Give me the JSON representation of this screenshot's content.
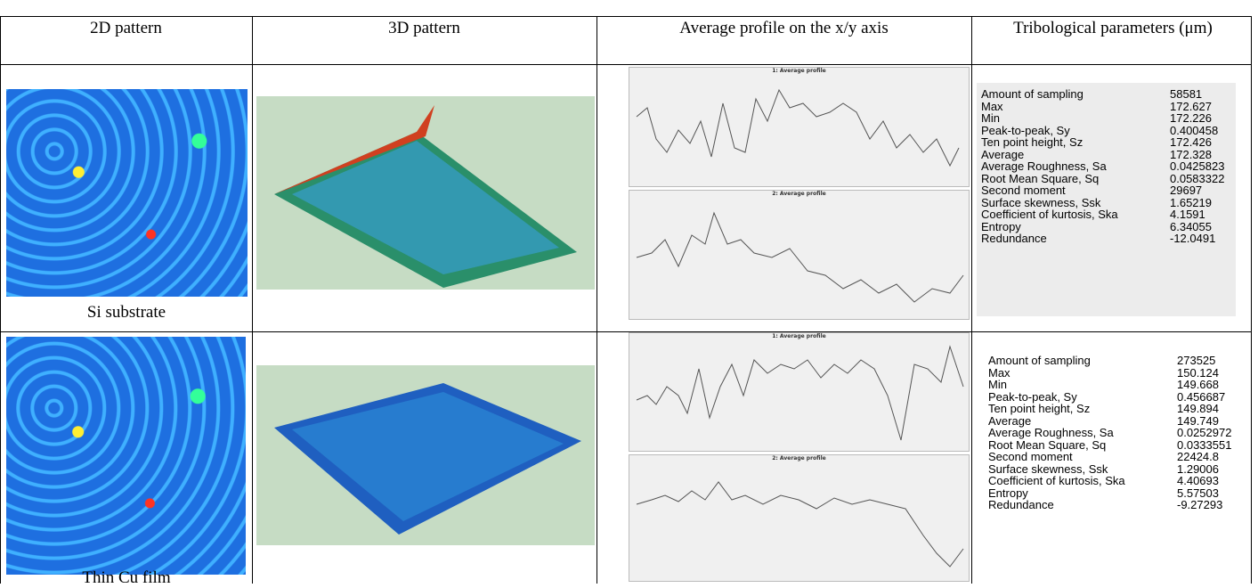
{
  "header": {
    "cells": [
      "2D pattern",
      "3D pattern",
      "Average profile on the x/y axis",
      "Tribological parameters (μm)"
    ]
  },
  "rows": [
    {
      "caption": "Si substrate",
      "profile_titles": [
        "1: Average profile",
        "2: Average profile"
      ],
      "parameters": [
        [
          "Amount of sampling",
          58581
        ],
        [
          "Max",
          172.627
        ],
        [
          "Min",
          172.226
        ],
        [
          "Peak-to-peak, Sy",
          0.400458
        ],
        [
          "Ten point height, Sz",
          172.426
        ],
        [
          "Average",
          172.328
        ],
        [
          "Average Roughness, Sa",
          0.0425823
        ],
        [
          "Root Mean Square, Sq",
          0.0583322
        ],
        [
          "Second moment",
          29697
        ],
        [
          "Surface skewness, Ssk",
          1.65219
        ],
        [
          "Coefficient of kurtosis, Ska",
          4.1591
        ],
        [
          "Entropy",
          6.34055
        ],
        [
          "Redundance",
          -12.0491
        ]
      ]
    },
    {
      "caption": "Thin Cu film",
      "profile_titles": [
        "1: Average profile",
        "2: Average profile"
      ],
      "parameters": [
        [
          "Amount of sampling",
          273525
        ],
        [
          "Max",
          150.124
        ],
        [
          "Min",
          149.668
        ],
        [
          "Peak-to-peak, Sy",
          0.456687
        ],
        [
          "Ten point height, Sz",
          149.894
        ],
        [
          "Average",
          149.749
        ],
        [
          "Average Roughness, Sa",
          0.0252972
        ],
        [
          "Root Mean Square, Sq",
          0.0333551
        ],
        [
          "Second moment",
          22424.8
        ],
        [
          "Surface skewness, Ssk",
          1.29006
        ],
        [
          "Coefficient of kurtosis, Ska",
          4.40693
        ],
        [
          "Entropy",
          5.57503
        ],
        [
          "Redundance",
          -9.27293
        ]
      ]
    }
  ]
}
